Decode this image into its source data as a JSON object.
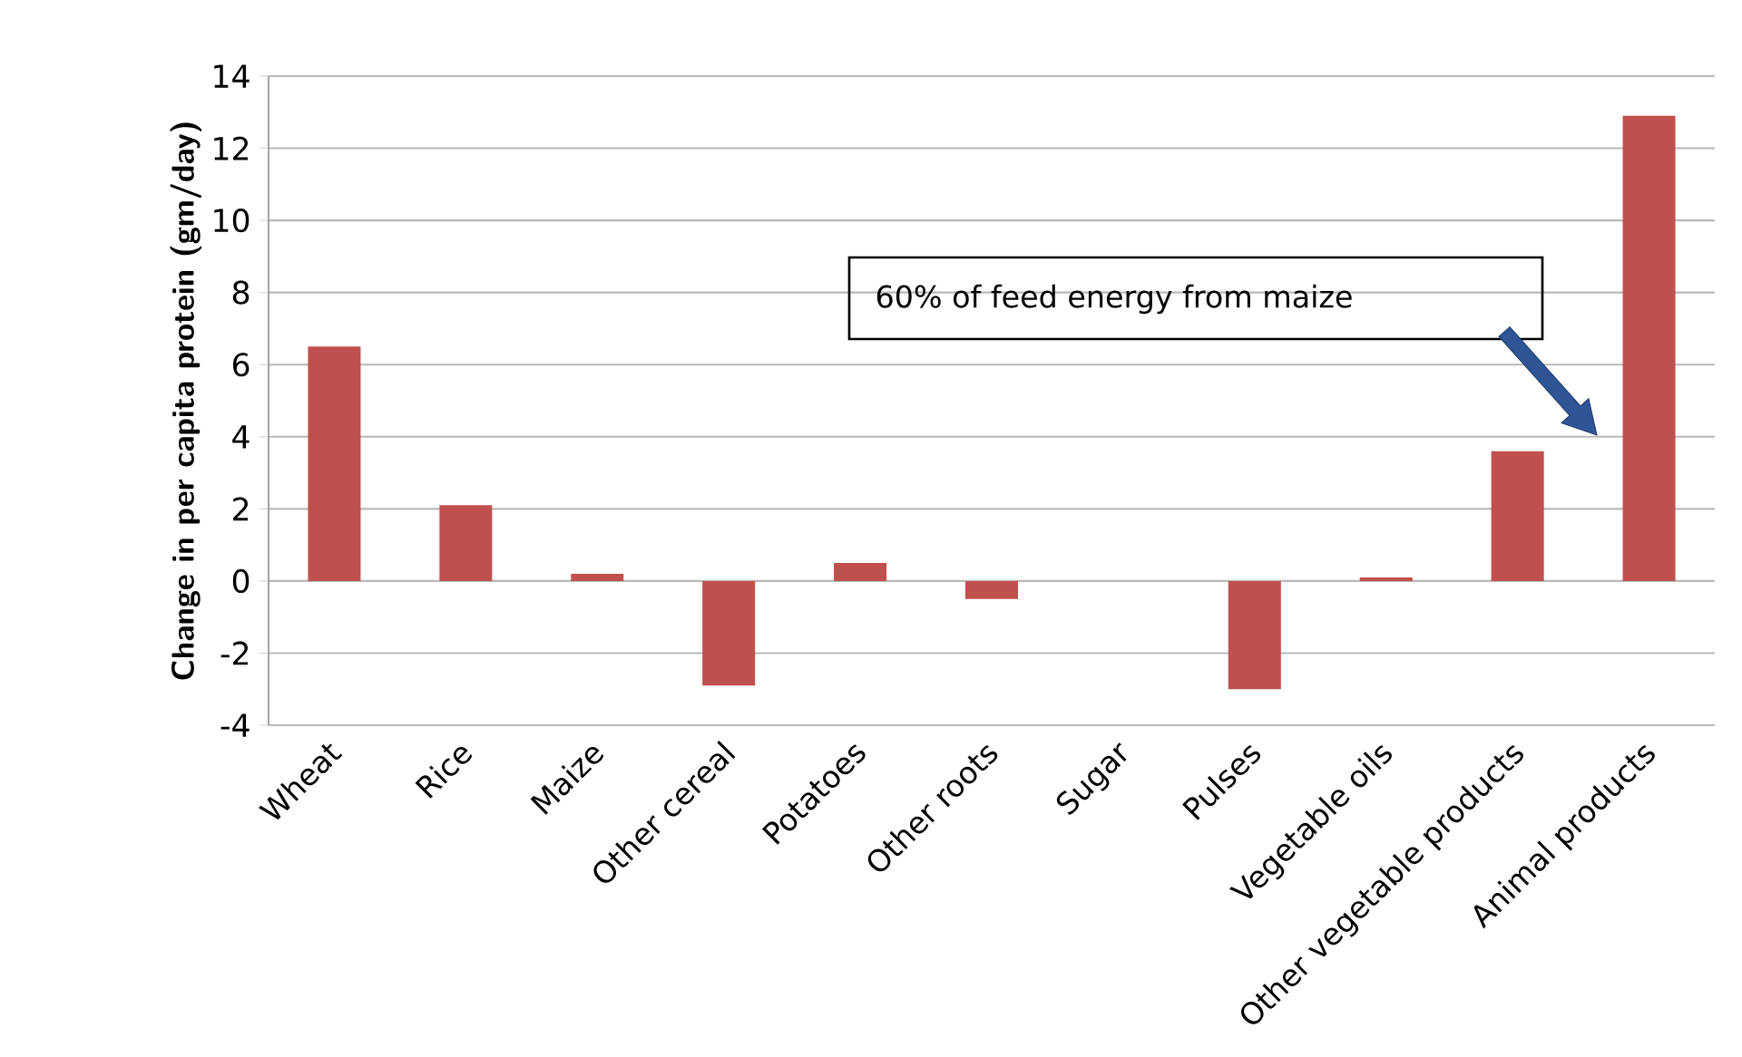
{
  "chart_data": {
    "type": "bar",
    "ylabel": "Change in per capita protein (gm/day)",
    "categories": [
      "Wheat",
      "Rice",
      "Maize",
      "Other cereal",
      "Potatoes",
      "Other roots",
      "Sugar",
      "Pulses",
      "Vegetable oils",
      "Other vegetable products",
      "Animal products"
    ],
    "values": [
      6.5,
      2.1,
      0.2,
      -2.9,
      0.5,
      -0.5,
      0,
      -3.0,
      0.1,
      3.6,
      12.9
    ],
    "color": "#c0504d",
    "ylim": [
      -4,
      14
    ],
    "yticks": [
      -4,
      -2,
      0,
      2,
      4,
      6,
      8,
      10,
      12,
      14
    ],
    "grid": "y",
    "annotations": [
      "60% of feed energy from maize"
    ]
  }
}
